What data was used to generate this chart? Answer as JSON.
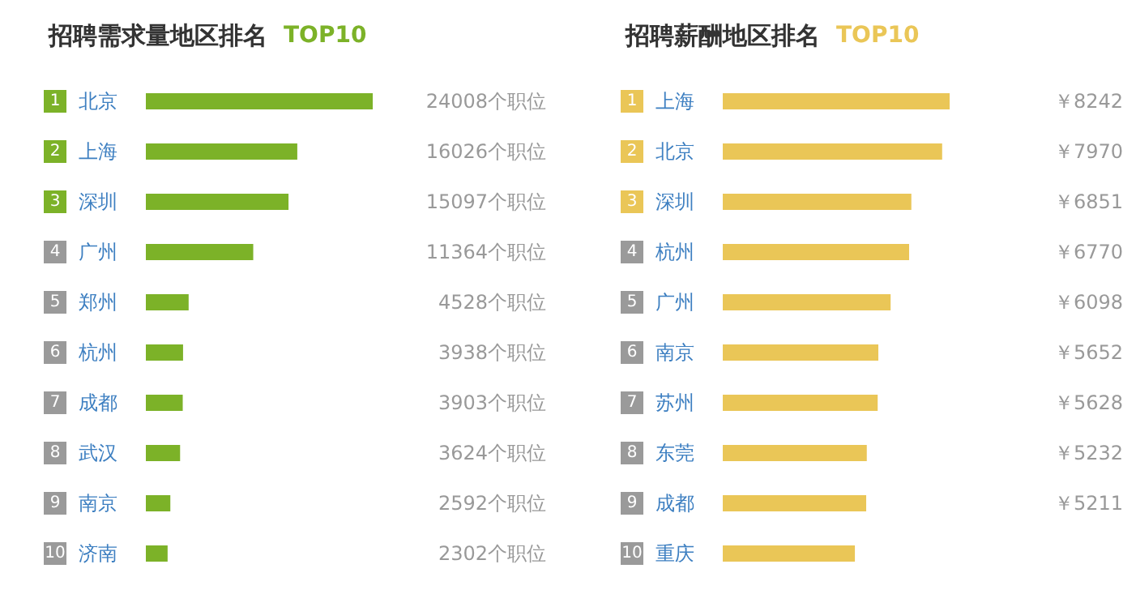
{
  "chart_data": [
    {
      "type": "bar",
      "orientation": "horizontal",
      "title": "招聘需求量地区排名",
      "subtitle": "TOP10",
      "categories": [
        "北京",
        "上海",
        "深圳",
        "广州",
        "郑州",
        "杭州",
        "成都",
        "武汉",
        "南京",
        "济南"
      ],
      "values": [
        24008,
        16026,
        15097,
        11364,
        4528,
        3938,
        3903,
        3624,
        2592,
        2302
      ],
      "value_labels": [
        "24008个职位",
        "16026个职位",
        "15097个职位",
        "11364个职位",
        "4528个职位",
        "3938个职位",
        "3903个职位",
        "3624个职位",
        "2592个职位",
        "2302个职位"
      ],
      "color": "#7cb228",
      "annotations": [
        "1",
        "2",
        "3",
        "4",
        "5",
        "6",
        "7",
        "8",
        "9",
        "10"
      ]
    },
    {
      "type": "bar",
      "orientation": "horizontal",
      "title": "招聘薪酬地区排名",
      "subtitle": "TOP10",
      "categories": [
        "上海",
        "北京",
        "深圳",
        "杭州",
        "广州",
        "南京",
        "苏州",
        "东莞",
        "成都",
        "重庆"
      ],
      "values": [
        8242,
        7970,
        6851,
        6770,
        6098,
        5652,
        5628,
        5232,
        5211,
        4800
      ],
      "value_labels": [
        "￥8242",
        "￥7970",
        "￥6851",
        "￥6770",
        "￥6098",
        "￥5652",
        "￥5628",
        "￥5232",
        "￥5211",
        null
      ],
      "color": "#eac657",
      "annotations": [
        "1",
        "2",
        "3",
        "4",
        "5",
        "6",
        "7",
        "8",
        "9",
        "10"
      ]
    }
  ]
}
